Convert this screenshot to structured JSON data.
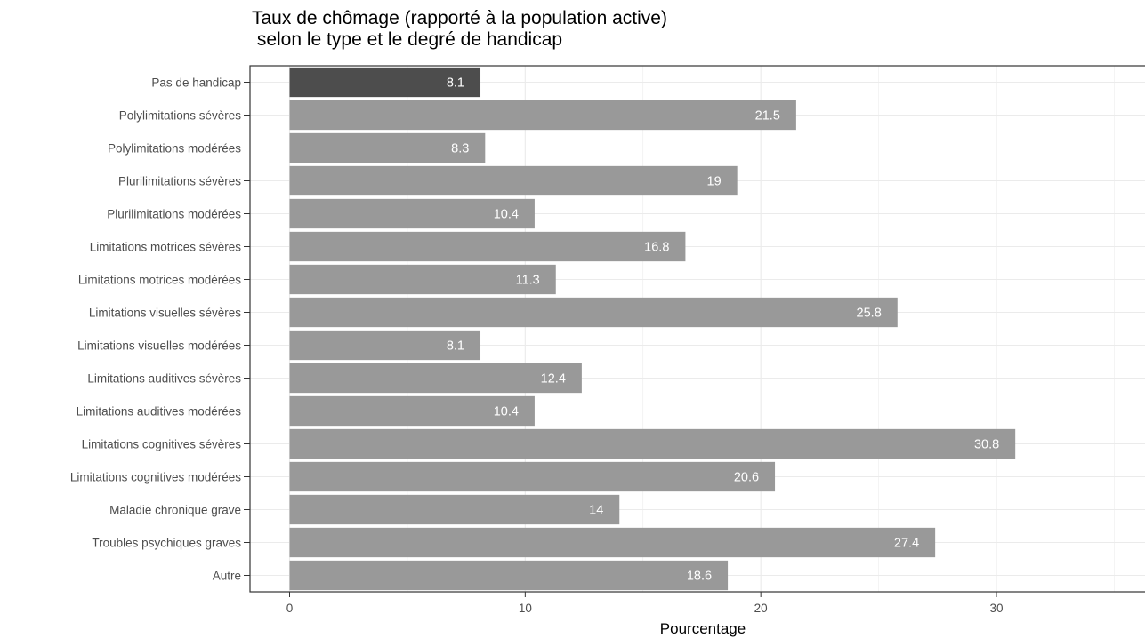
{
  "chart_data": {
    "type": "bar",
    "orientation": "horizontal",
    "title": "Taux de chômage (rapporté à la population active)\n selon le type et le degré de handicap",
    "xlabel": "Pourcentage",
    "ylabel": "",
    "xlim": [
      0,
      36
    ],
    "x_ticks": [
      0,
      10,
      20,
      30
    ],
    "grid": true,
    "categories": [
      "Pas de handicap",
      "Polylimitations sévères",
      "Polylimitations modérées",
      "Plurilimitations sévères",
      "Plurilimitations modérées",
      "Limitations motrices sévères",
      "Limitations motrices modérées",
      "Limitations visuelles sévères",
      "Limitations visuelles modérées",
      "Limitations auditives sévères",
      "Limitations auditives modérées",
      "Limitations cognitives sévères",
      "Limitations cognitives modérées",
      "Maladie chronique grave",
      "Troubles psychiques graves",
      "Autre"
    ],
    "values": [
      8.1,
      21.5,
      8.3,
      19,
      10.4,
      16.8,
      11.3,
      25.8,
      8.1,
      12.4,
      10.4,
      30.8,
      20.6,
      14,
      27.4,
      18.6
    ],
    "value_labels": [
      "8.1",
      "21.5",
      "8.3",
      "19",
      "10.4",
      "16.8",
      "11.3",
      "25.8",
      "8.1",
      "12.4",
      "10.4",
      "30.8",
      "20.6",
      "14",
      "27.4",
      "18.6"
    ],
    "highlight_index": 0,
    "colors": {
      "highlight": "#4d4d4d",
      "bar": "#999999",
      "grid": "#ebebeb",
      "axis": "#333333"
    }
  }
}
